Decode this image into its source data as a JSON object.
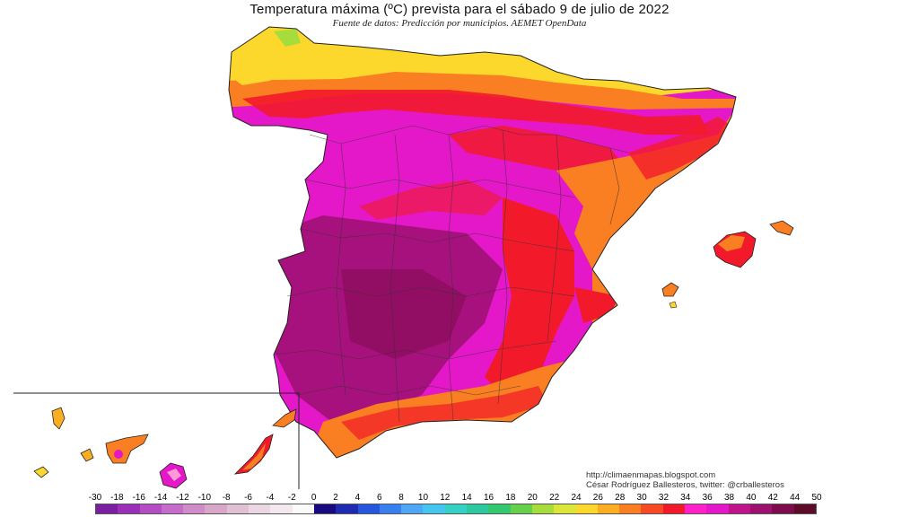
{
  "title": "Temperatura máxima (ºC) prevista para el sábado 9 de julio de 2022",
  "subtitle": "Fuente de datos: Predicción por municipios. AEMET OpenData",
  "credits": {
    "url": "http://climaenmapas.blogspot.com",
    "author": "César Rodríguez Ballesteros, twitter: @crballesteros"
  },
  "legend": {
    "labels": [
      "-30",
      "-18",
      "-16",
      "-14",
      "-12",
      "-10",
      "-8",
      "-6",
      "-4",
      "-2",
      "0",
      "2",
      "4",
      "6",
      "8",
      "10",
      "12",
      "14",
      "16",
      "18",
      "20",
      "22",
      "24",
      "26",
      "28",
      "30",
      "32",
      "34",
      "36",
      "38",
      "40",
      "42",
      "44",
      "50"
    ],
    "colors": [
      "#7a1fa2",
      "#9b30b8",
      "#b44cc4",
      "#c56ccc",
      "#d08cc8",
      "#d8a6c8",
      "#e2c0d4",
      "#ecd6e2",
      "#f2e8ee",
      "#fafafa",
      "#1a0a80",
      "#1e2ab0",
      "#2656dc",
      "#3a7ff0",
      "#4fa6f4",
      "#46c6ee",
      "#36d0c4",
      "#2ec8a0",
      "#34c870",
      "#64d04c",
      "#a6dc3c",
      "#dce63a",
      "#fcd82c",
      "#fcae22",
      "#fa7e22",
      "#f64a24",
      "#f21a2a",
      "#ff20c8",
      "#e418c8",
      "#c0148c",
      "#9c1070",
      "#7c0c4c",
      "#5c0c28"
    ],
    "marker_label": "16"
  },
  "map": {
    "region": "España peninsular, Baleares y Canarias",
    "colors": {
      "extreme": "#9c1070",
      "very_hot": "#e418c8",
      "hot": "#f21a2a",
      "warm": "#fa7e22",
      "mild": "#fcd82c",
      "cool": "#a6dc3c"
    }
  }
}
